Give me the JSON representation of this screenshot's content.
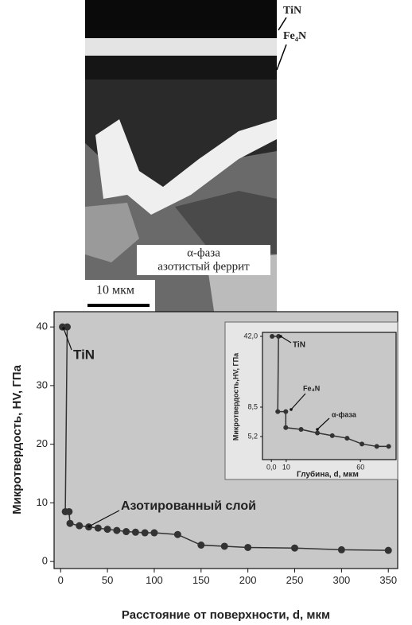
{
  "micrograph": {
    "labels": [
      "TiN",
      "Fe₄N"
    ],
    "phase": [
      "α-фаза",
      "азотистый феррит"
    ],
    "scale_bar": "10 мкм"
  },
  "chart_data": [
    {
      "type": "line",
      "title": null,
      "x_label": "Расстояние от поверхности, d, мкм",
      "y_label": "Микротвердость, HV, ГПа",
      "x": [
        2,
        7,
        5,
        9,
        10,
        20,
        30,
        40,
        50,
        60,
        70,
        80,
        90,
        100,
        125,
        150,
        175,
        200,
        250,
        300,
        350
      ],
      "values": [
        40,
        40,
        8.5,
        8.5,
        6.5,
        6.1,
        5.9,
        5.7,
        5.5,
        5.3,
        5.1,
        5.0,
        4.9,
        4.9,
        4.6,
        2.8,
        2.6,
        2.4,
        2.3,
        2.0,
        1.9
      ],
      "color": "#333333",
      "background": "#c8c8c8",
      "xlim": [
        -7,
        360
      ],
      "ylim": [
        -1.2,
        42.6
      ],
      "xticks": [
        0,
        50,
        100,
        150,
        200,
        250,
        300,
        350
      ],
      "yticks": [
        0,
        10,
        20,
        30,
        40
      ],
      "annotations": [
        "TiN",
        "Азотированный слой"
      ]
    },
    {
      "type": "line",
      "title": null,
      "x_label": "Глубина, d, мкм",
      "y_label": "Микротвердость,HV, ГПа",
      "x": [
        0.5,
        4.8,
        4.3,
        9.7,
        9.7,
        20,
        31,
        41,
        51,
        61,
        71,
        79
      ],
      "values": [
        42,
        42,
        8,
        8,
        6.2,
        6.0,
        5.6,
        5.3,
        5.0,
        4.3,
        4.0,
        4.0
      ],
      "color": "#333333",
      "background": "#c8c8c8",
      "yscale": "broken",
      "xlim": [
        -6,
        84
      ],
      "ylim": [
        2.4,
        44
      ],
      "xticks": [
        {
          "value": 0,
          "label": "0,0"
        },
        10,
        60
      ],
      "yticks": [
        {
          "value": 5.2,
          "label": "5,2"
        },
        {
          "value": 8.5,
          "label": "8,5"
        },
        {
          "value": 42,
          "label": "42,0"
        }
      ],
      "annotations": [
        "TiN",
        "Fe₄N",
        "α-фаза"
      ]
    }
  ]
}
